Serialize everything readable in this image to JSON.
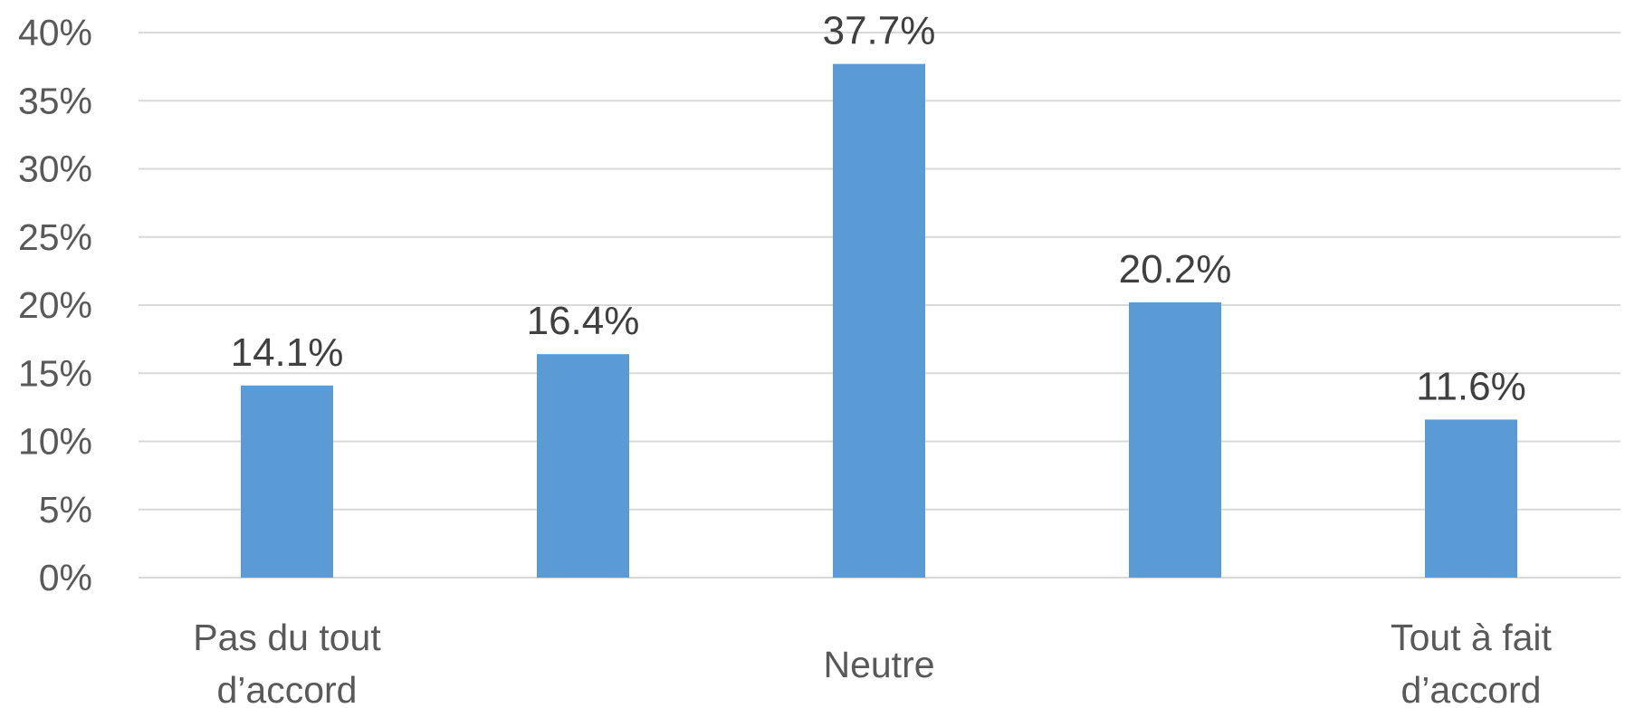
{
  "chart_data": {
    "type": "bar",
    "categories": [
      [
        "Pas du tout",
        "d’accord"
      ],
      [],
      [
        "Neutre"
      ],
      [],
      [
        "Tout à fait",
        "d’accord"
      ]
    ],
    "values": [
      14.1,
      16.4,
      37.7,
      20.2,
      11.6
    ],
    "data_labels": [
      "14.1%",
      "16.4%",
      "37.7%",
      "20.2%",
      "11.6%"
    ],
    "ylim": [
      0,
      40
    ],
    "yticks": [
      0,
      5,
      10,
      15,
      20,
      25,
      30,
      35,
      40
    ],
    "ytick_labels": [
      "0%",
      "5%",
      "10%",
      "15%",
      "20%",
      "25%",
      "30%",
      "35%",
      "40%"
    ],
    "grid": true,
    "legend": "none",
    "colors": {
      "bar": "#5b9bd5",
      "grid": "#d9d9d9",
      "axis_text": "#595959",
      "data_label_text": "#404040"
    }
  }
}
